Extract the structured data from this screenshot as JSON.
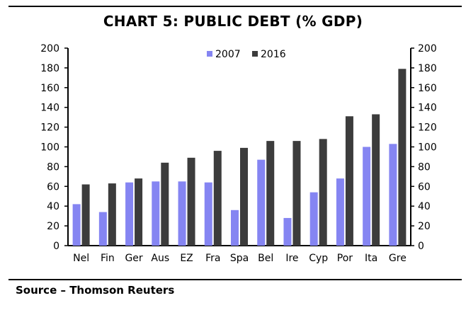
{
  "title": "CHART 5: PUBLIC DEBT (% GDP)",
  "source": "Source – Thomson Reuters",
  "colors": {
    "s2007": "#8585f2",
    "s2016": "#3c3c3c",
    "axis": "#000000"
  },
  "chart_data": {
    "type": "bar",
    "title": "CHART 5: PUBLIC DEBT (% GDP)",
    "xlabel": "",
    "ylabel": "",
    "ylim": [
      0,
      200
    ],
    "yticks": [
      0,
      20,
      40,
      60,
      80,
      100,
      120,
      140,
      160,
      180,
      200
    ],
    "secondary_yaxis": true,
    "grid": false,
    "legend_position": "top-center",
    "categories": [
      "Nel",
      "Fin",
      "Ger",
      "Aus",
      "EZ",
      "Fra",
      "Spa",
      "Bel",
      "Ire",
      "Cyp",
      "Por",
      "Ita",
      "Gre"
    ],
    "series": [
      {
        "name": "2007",
        "values": [
          42,
          34,
          64,
          65,
          65,
          64,
          36,
          87,
          28,
          54,
          68,
          100,
          103
        ]
      },
      {
        "name": "2016",
        "values": [
          62,
          63,
          68,
          84,
          89,
          96,
          99,
          106,
          106,
          108,
          131,
          133,
          179
        ]
      }
    ]
  }
}
